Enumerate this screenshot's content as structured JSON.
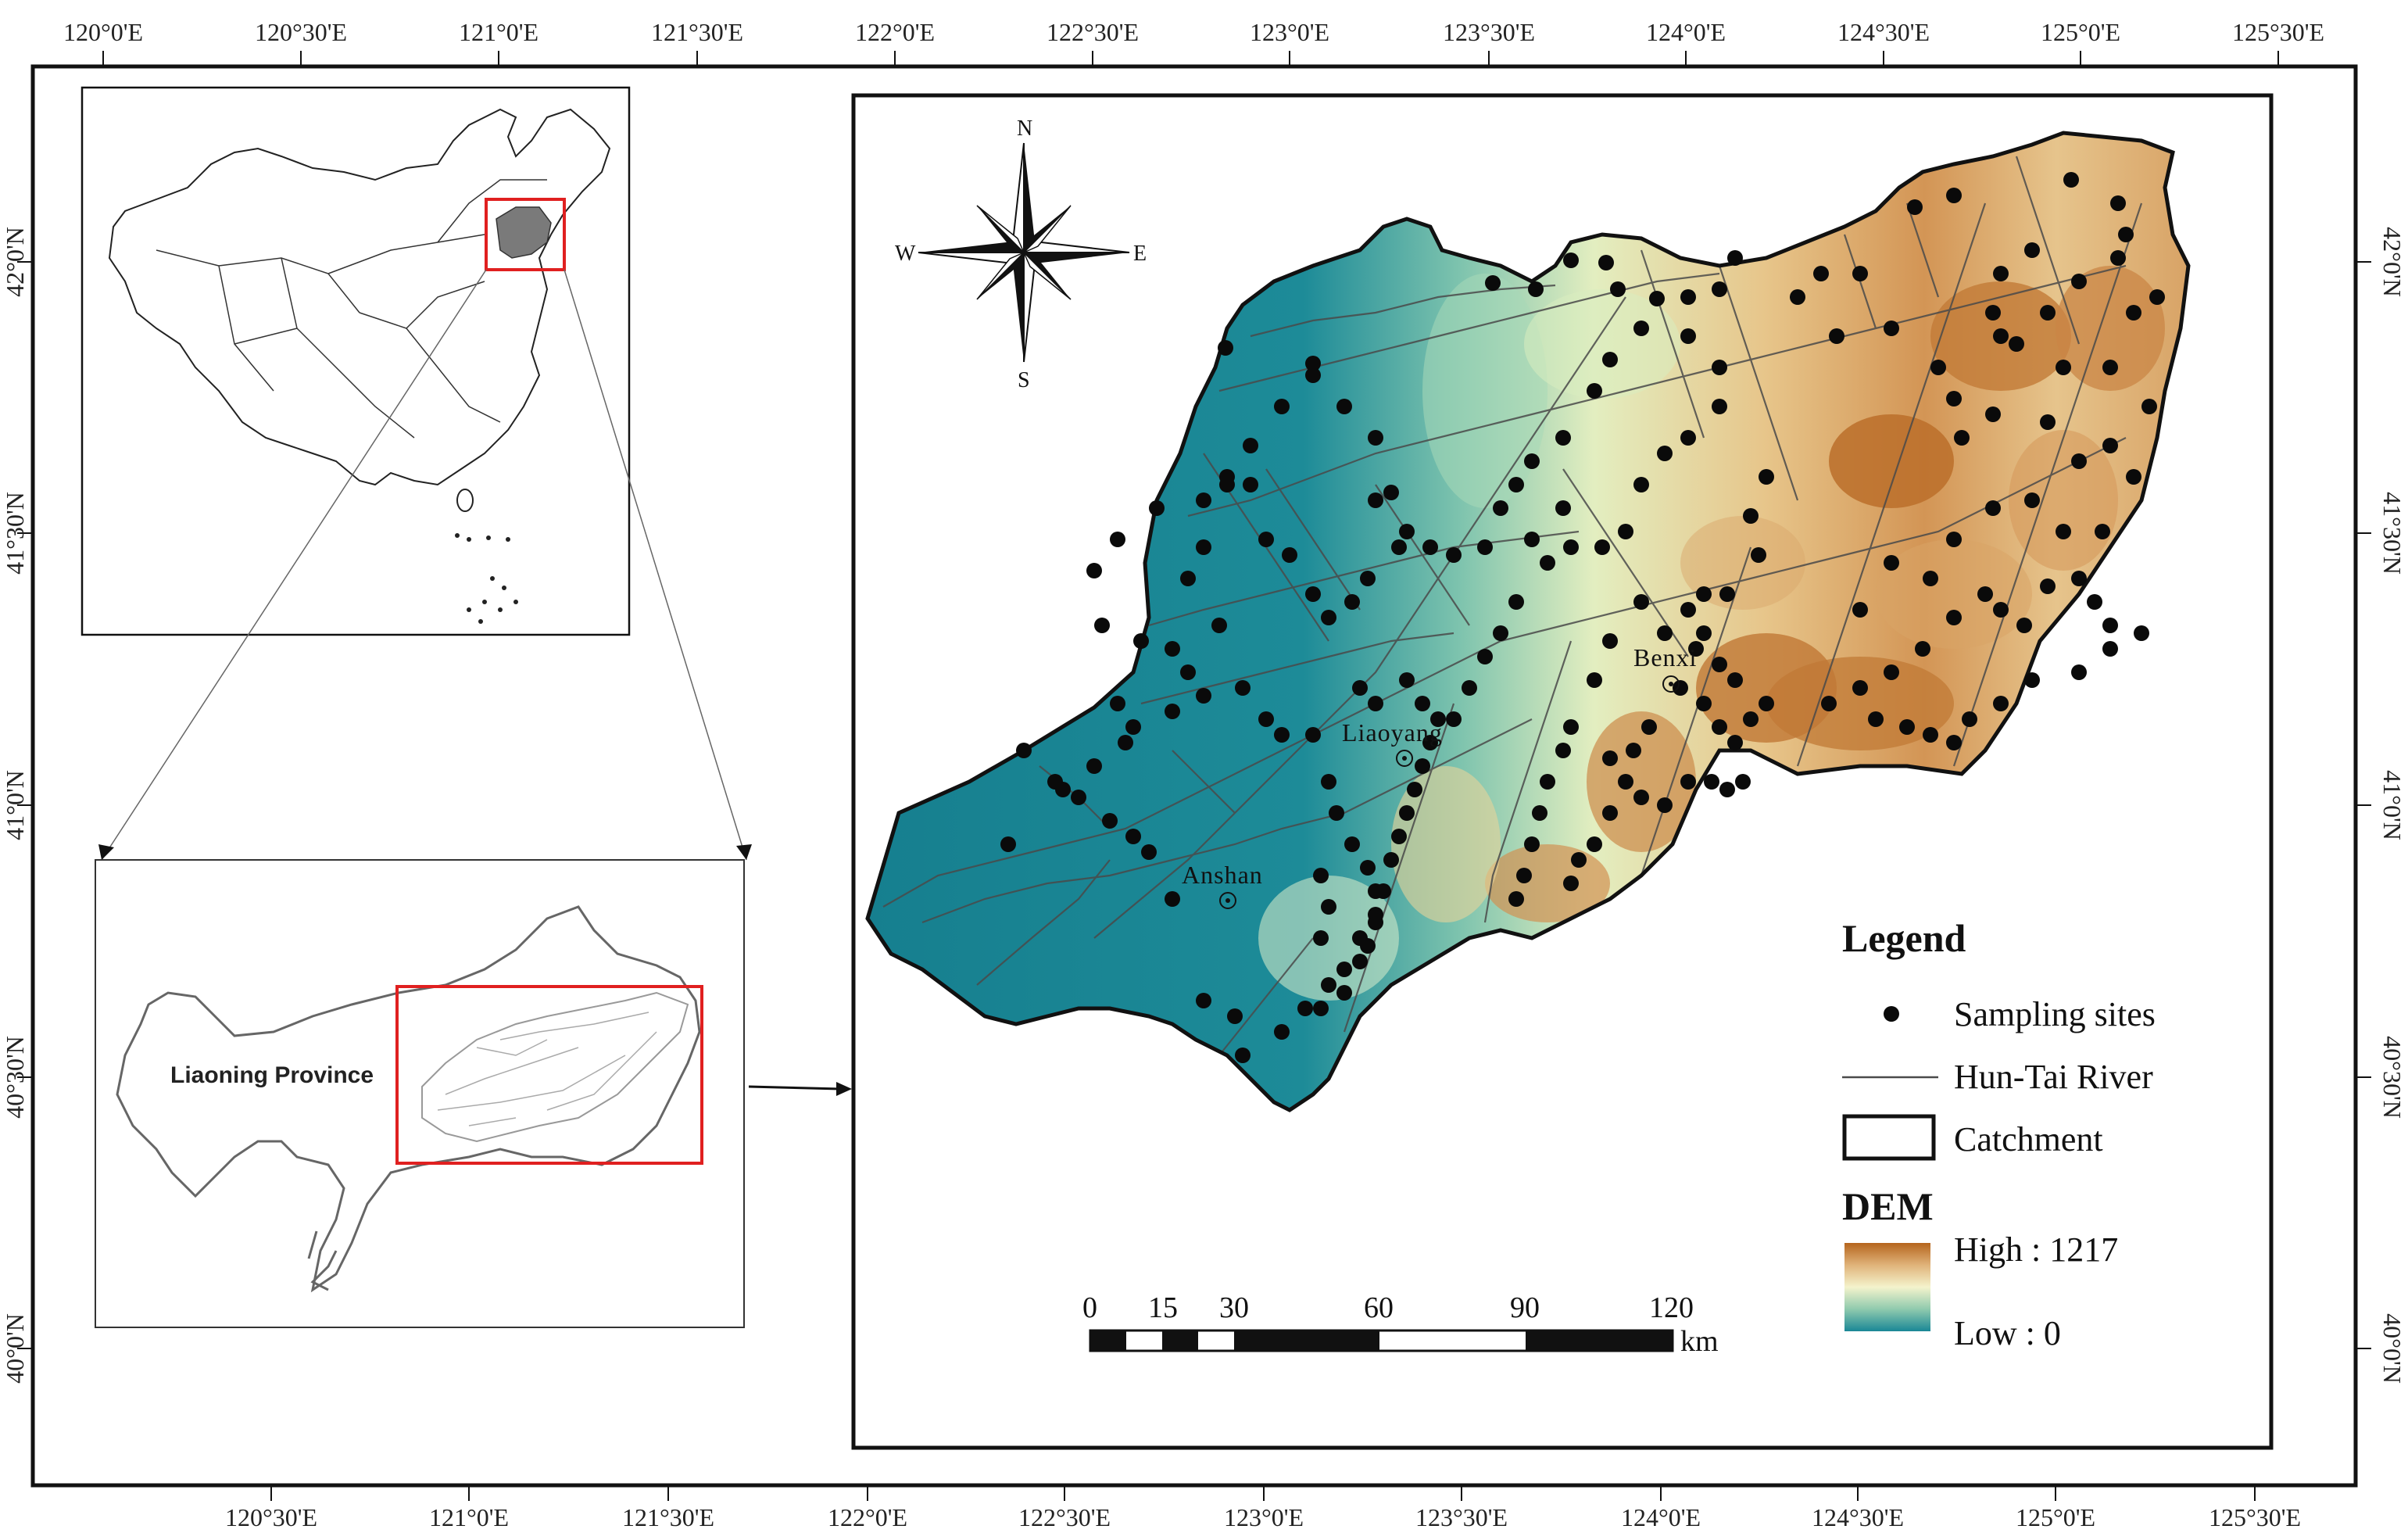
{
  "top_ticks": [
    "120°0'E",
    "120°30'E",
    "121°0'E",
    "121°30'E",
    "122°0'E",
    "122°30'E",
    "123°0'E",
    "123°30'E",
    "124°0'E",
    "124°30'E",
    "125°0'E",
    "125°30'E"
  ],
  "bottom_ticks": [
    "120°30'E",
    "121°0'E",
    "121°30'E",
    "122°0'E",
    "122°30'E",
    "123°0'E",
    "123°30'E",
    "124°0'E",
    "124°30'E",
    "125°0'E",
    "125°30'E"
  ],
  "left_ticks": [
    "42°0'N",
    "41°30'N",
    "41°0'N",
    "40°30'N",
    "40°0'N"
  ],
  "right_ticks": [
    "42°0'N",
    "41°30'N",
    "41°0'N",
    "40°30'N",
    "40°0'N"
  ],
  "compass": {
    "n": "N",
    "s": "S",
    "e": "E",
    "w": "W"
  },
  "cities": {
    "liaoyang": "Liaoyang",
    "anshan": "Anshan",
    "benxi": "Benxi"
  },
  "inset": {
    "province_label": "Liaoning Province"
  },
  "legend": {
    "title": "Legend",
    "sampling_sites": "Sampling sites",
    "river": "Hun-Tai River",
    "catchment": "Catchment",
    "dem_title": "DEM",
    "dem_high": "High : 1217",
    "dem_low": "Low : 0"
  },
  "scale_bar": {
    "labels": [
      "0",
      "15",
      "30",
      "60",
      "90",
      "120"
    ],
    "unit": "km"
  },
  "dem": {
    "high": 1217,
    "low": 0
  },
  "colors": {
    "dem_high": "#b5651d",
    "dem_mid_high": "#e8c98a",
    "dem_mid": "#f2f2c8",
    "dem_mid_low": "#9fd0b4",
    "dem_low": "#1e8a99",
    "river": "#4a4a4a",
    "highlight": "#e02020",
    "china_fill": "#7a7a7a"
  }
}
